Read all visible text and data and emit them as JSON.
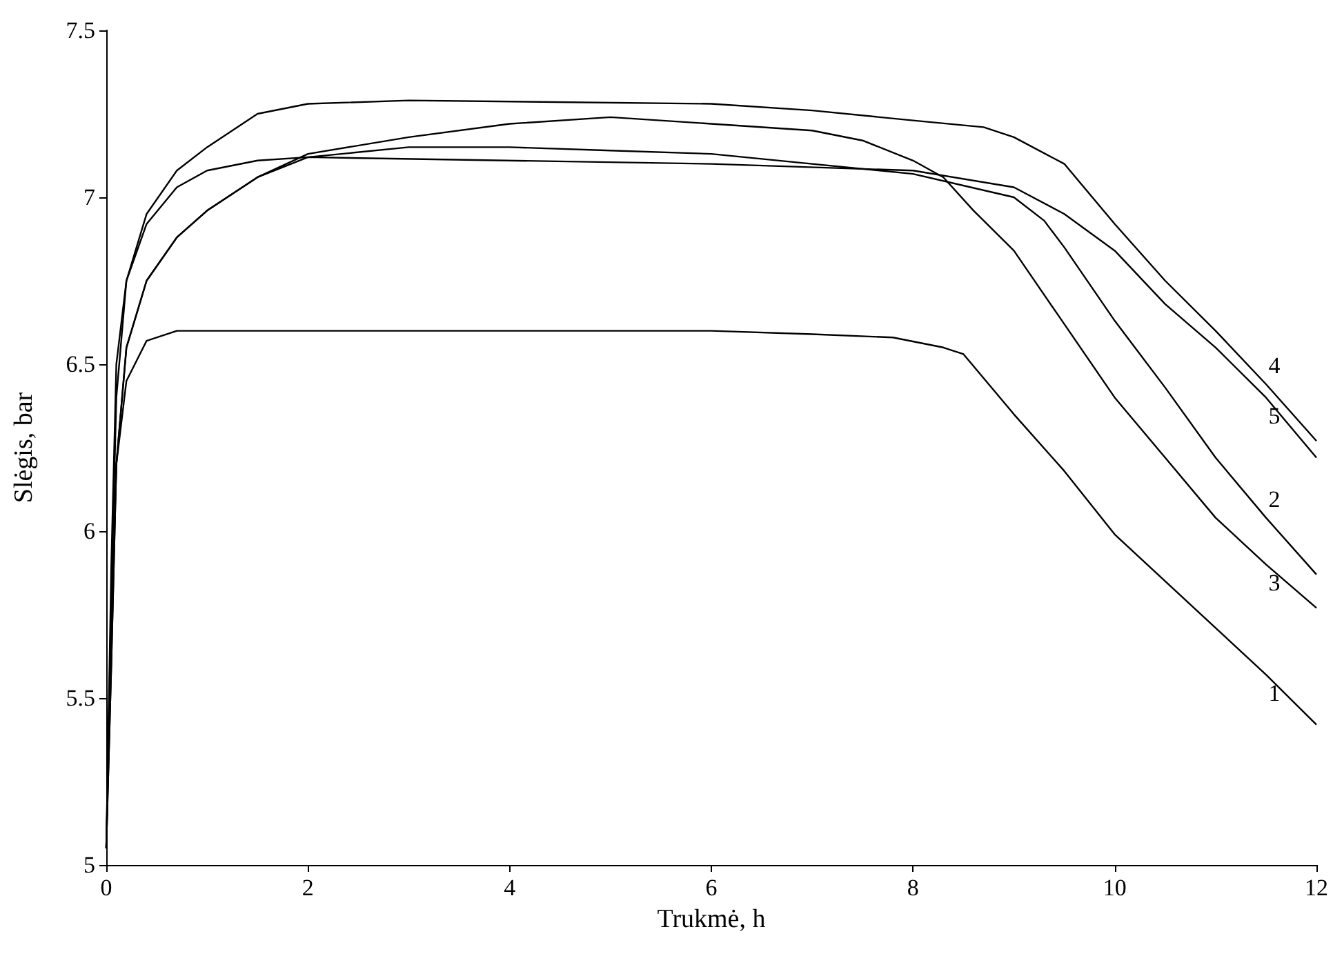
{
  "chart_data": {
    "type": "line",
    "xlabel": "Trukmė, h",
    "ylabel": "Slėgis, bar",
    "xlim": [
      0,
      12
    ],
    "xticks": [
      0,
      2,
      4,
      6,
      8,
      10,
      12
    ],
    "ylim": [
      5,
      7.5
    ],
    "yticks": [
      5,
      5.5,
      6,
      6.5,
      7,
      7.5
    ],
    "grid": false,
    "legend": false,
    "marker": "none",
    "line_style": "solid",
    "series": [
      {
        "name": "1",
        "color": "#000000",
        "x": [
          0,
          0.05,
          0.1,
          0.2,
          0.4,
          0.7,
          1,
          2,
          4,
          6,
          7,
          7.8,
          8.3,
          8.5,
          9,
          9.5,
          10,
          10.5,
          11,
          11.5,
          12
        ],
        "values": [
          5.05,
          5.7,
          6.2,
          6.45,
          6.57,
          6.6,
          6.6,
          6.6,
          6.6,
          6.6,
          6.59,
          6.58,
          6.55,
          6.53,
          6.35,
          6.18,
          5.99,
          5.85,
          5.71,
          5.57,
          5.42
        ]
      },
      {
        "name": "2",
        "color": "#000000",
        "x": [
          0,
          0.05,
          0.1,
          0.2,
          0.4,
          0.7,
          1,
          1.5,
          2,
          3,
          4,
          5,
          6,
          7,
          8,
          9,
          9.3,
          9.5,
          10,
          10.5,
          11,
          11.5,
          12
        ],
        "values": [
          5.05,
          5.6,
          6.2,
          6.55,
          6.75,
          6.88,
          6.96,
          7.06,
          7.12,
          7.15,
          7.15,
          7.14,
          7.13,
          7.1,
          7.07,
          7.0,
          6.93,
          6.85,
          6.63,
          6.43,
          6.22,
          6.04,
          5.87
        ]
      },
      {
        "name": "3",
        "color": "#000000",
        "x": [
          0,
          0.05,
          0.1,
          0.2,
          0.4,
          0.7,
          1,
          1.5,
          2,
          3,
          4,
          5,
          6,
          7,
          7.5,
          8,
          8.3,
          8.6,
          9,
          9.5,
          10,
          10.5,
          11,
          11.5,
          12
        ],
        "values": [
          5.05,
          5.6,
          6.2,
          6.55,
          6.75,
          6.88,
          6.96,
          7.06,
          7.13,
          7.18,
          7.22,
          7.24,
          7.22,
          7.2,
          7.17,
          7.11,
          7.06,
          6.96,
          6.84,
          6.62,
          6.4,
          6.22,
          6.04,
          5.9,
          5.77
        ]
      },
      {
        "name": "4",
        "color": "#000000",
        "x": [
          0,
          0.05,
          0.1,
          0.2,
          0.4,
          0.7,
          1,
          1.5,
          2,
          3,
          6,
          7,
          8,
          8.7,
          9,
          9.5,
          10,
          10.5,
          11,
          11.5,
          12
        ],
        "values": [
          5.05,
          5.9,
          6.5,
          6.75,
          6.95,
          7.08,
          7.15,
          7.25,
          7.28,
          7.29,
          7.28,
          7.26,
          7.23,
          7.21,
          7.18,
          7.1,
          6.92,
          6.75,
          6.6,
          6.44,
          6.27
        ]
      },
      {
        "name": "5",
        "color": "#000000",
        "x": [
          0,
          0.05,
          0.1,
          0.2,
          0.4,
          0.7,
          1,
          1.5,
          2,
          6,
          8,
          9,
          9.5,
          10,
          10.5,
          11,
          11.5,
          12
        ],
        "values": [
          5.05,
          5.8,
          6.4,
          6.75,
          6.92,
          7.03,
          7.08,
          7.11,
          7.12,
          7.1,
          7.08,
          7.03,
          6.95,
          6.84,
          6.68,
          6.55,
          6.4,
          6.22
        ]
      }
    ]
  }
}
